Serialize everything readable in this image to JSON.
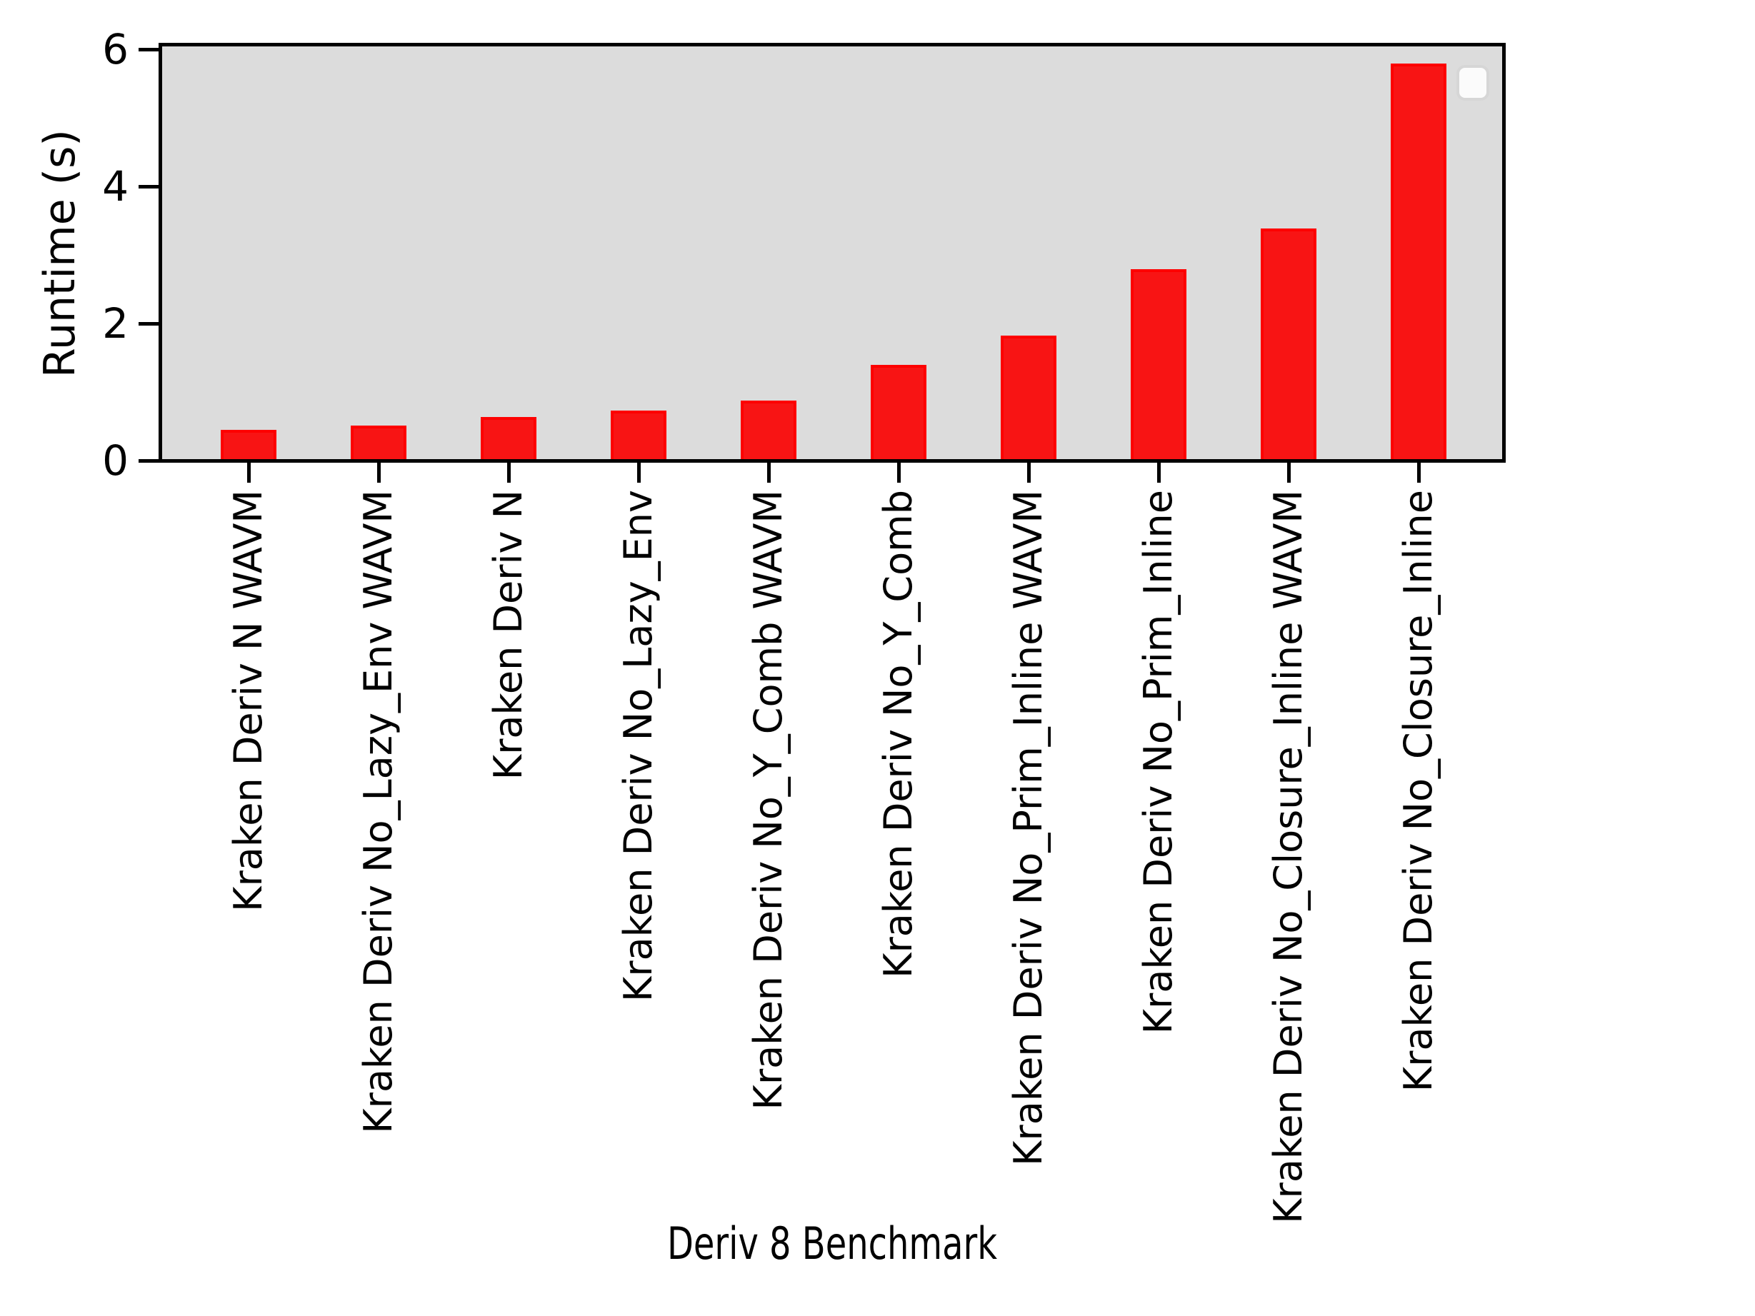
{
  "chart_data": {
    "type": "bar",
    "title": "",
    "xlabel": "Deriv 8 Benchmark",
    "ylabel": "Runtime (s)",
    "categories": [
      "Kraken Deriv N WAVM",
      "Kraken Deriv No_Lazy_Env WAVM",
      "Kraken Deriv N",
      "Kraken Deriv No_Lazy_Env",
      "Kraken Deriv No_Y_Comb WAVM",
      "Kraken Deriv No_Y_Comb",
      "Kraken Deriv No_Prim_Inline WAVM",
      "Kraken Deriv No_Prim_Inline",
      "Kraken Deriv No_Closure_Inline WAVM",
      "Kraken Deriv No_Closure_Inline"
    ],
    "values": [
      0.43,
      0.49,
      0.61,
      0.71,
      0.85,
      1.37,
      1.8,
      2.77,
      3.36,
      5.77
    ],
    "yticks": [
      0,
      2,
      4,
      6
    ],
    "ylim": [
      0,
      6.05
    ],
    "grid": false,
    "legend": {
      "present": true,
      "entries": [],
      "position": "upper right"
    },
    "colors": {
      "bar_fill": "#f81414",
      "bar_edge": "#fd0000",
      "plot_background": "#dcdcdc",
      "figure_background": "#ffffff",
      "spine": "#000000",
      "text": "#000000"
    },
    "x_tick_rotation_deg": 90
  }
}
